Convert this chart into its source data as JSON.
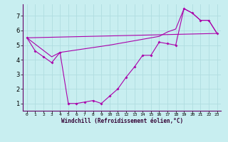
{
  "xlabel": "Windchill (Refroidissement éolien,°C)",
  "background_color": "#c8eef0",
  "line_color": "#aa00aa",
  "xlim": [
    -0.5,
    23.5
  ],
  "ylim": [
    0.5,
    7.8
  ],
  "xticks": [
    0,
    1,
    2,
    3,
    4,
    5,
    6,
    7,
    8,
    9,
    10,
    11,
    12,
    13,
    14,
    15,
    16,
    17,
    18,
    19,
    20,
    21,
    22,
    23
  ],
  "yticks": [
    1,
    2,
    3,
    4,
    5,
    6,
    7
  ],
  "grid_color": "#b0dde0",
  "line1_x": [
    0,
    1,
    2,
    3,
    4,
    5,
    6,
    7,
    8,
    9,
    10,
    11,
    12,
    13,
    14,
    15,
    16,
    17,
    18,
    19,
    20,
    21,
    22,
    23
  ],
  "line1_y": [
    5.5,
    4.6,
    4.2,
    3.8,
    4.5,
    1.0,
    1.0,
    1.1,
    1.2,
    1.0,
    1.5,
    2.0,
    2.8,
    3.5,
    4.3,
    4.3,
    5.2,
    5.1,
    5.0,
    7.5,
    7.2,
    6.7,
    6.7,
    5.8
  ],
  "line2_x": [
    0,
    23
  ],
  "line2_y": [
    5.5,
    5.8
  ],
  "line3_x": [
    0,
    3,
    4,
    10,
    14,
    15,
    16,
    17,
    18,
    19,
    20,
    21,
    22,
    23
  ],
  "line3_y": [
    5.5,
    4.2,
    4.5,
    5.0,
    5.4,
    5.5,
    5.6,
    5.9,
    6.1,
    7.5,
    7.2,
    6.7,
    6.7,
    5.8
  ]
}
